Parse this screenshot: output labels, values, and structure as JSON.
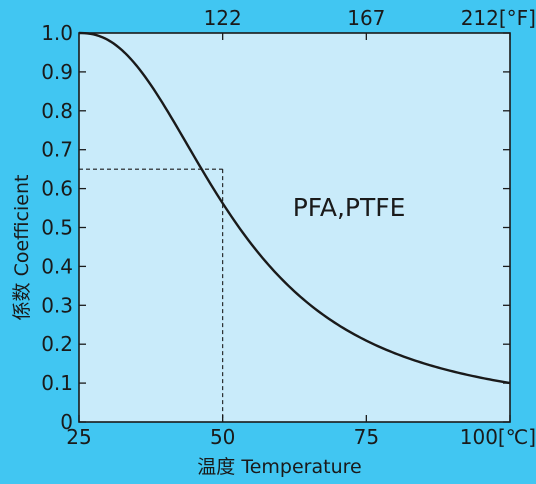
{
  "colors": {
    "page_background": "#41c6f2",
    "plot_background": "#c9ebfa",
    "curve": "#1a1a1a",
    "text": "#1a1a1a"
  },
  "chart_data": {
    "type": "line",
    "title": "",
    "xlabel": "温度   Temperature",
    "ylabel": "係数   Coefficient",
    "xlim": [
      25,
      100
    ],
    "ylim": [
      0,
      1.0
    ],
    "grid": false,
    "x_ticks": [
      25,
      50,
      75,
      100
    ],
    "x_tick_labels": [
      "25",
      "50",
      "75",
      "100[℃]"
    ],
    "y_ticks": [
      0,
      0.1,
      0.2,
      0.3,
      0.4,
      0.5,
      0.6,
      0.7,
      0.8,
      0.9,
      1.0
    ],
    "y_tick_labels": [
      "0",
      "0.1",
      "0.2",
      "0.3",
      "0.4",
      "0.5",
      "0.6",
      "0.7",
      "0.8",
      "0.9",
      "1.0"
    ],
    "secondary_x_ticks": [
      50,
      75,
      100
    ],
    "secondary_x_tick_labels": [
      "122",
      "167",
      "212[°F]"
    ],
    "series": [
      {
        "x": [
          25,
          27,
          30,
          33,
          35,
          38,
          40,
          43,
          45,
          48,
          50,
          53,
          55,
          58,
          60,
          63,
          65,
          68,
          70,
          73,
          75,
          78,
          80,
          83,
          85,
          88,
          90,
          93,
          95,
          98,
          100
        ],
        "values": [
          1.0,
          0.985,
          0.958,
          0.92,
          0.89,
          0.83,
          0.785,
          0.715,
          0.665,
          0.6,
          0.65,
          0.595,
          0.56,
          0.51,
          0.475,
          0.425,
          0.392,
          0.343,
          0.311,
          0.265,
          0.235,
          0.192,
          0.166,
          0.13,
          0.107,
          0.077,
          0.061,
          0.046,
          0.039,
          0.032,
          0.03
        ]
      }
    ],
    "reference_point": {
      "x": 50,
      "y": 0.65
    },
    "annotations": [
      {
        "text": "PFA,PTFE",
        "x": 72,
        "y": 0.53
      }
    ]
  }
}
